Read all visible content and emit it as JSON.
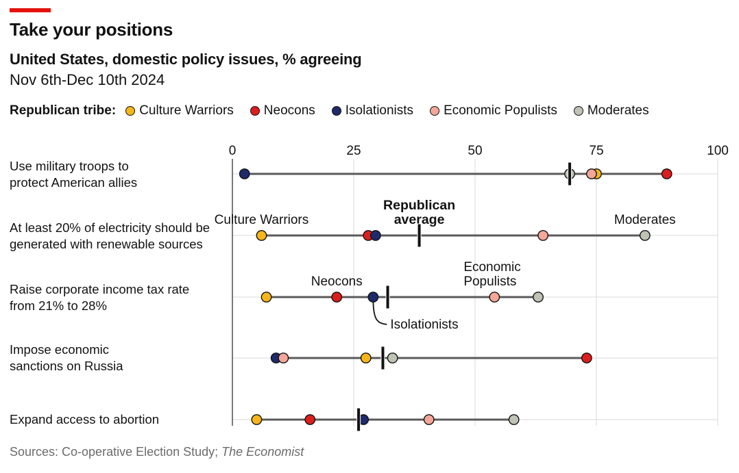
{
  "header": {
    "title": "Take your positions",
    "subtitle": "United States, domestic policy issues, % agreeing",
    "dates": "Nov 6th-Dec 10th 2024"
  },
  "legend": {
    "title": "Republican tribe:",
    "items": [
      {
        "name": "Culture Warriors",
        "color": "#f6b619"
      },
      {
        "name": "Neocons",
        "color": "#db1e1e"
      },
      {
        "name": "Isolationists",
        "color": "#1f2a6b"
      },
      {
        "name": "Economic Populists",
        "color": "#f4a698"
      },
      {
        "name": "Moderates",
        "color": "#bfc3b4"
      }
    ]
  },
  "footer": {
    "source_prefix": "Sources: Co-operative Election Study; ",
    "source_italic": "The Economist"
  },
  "chart_data": {
    "type": "dot-plot",
    "xlim": [
      0,
      100
    ],
    "xticks": [
      "0",
      "25",
      "50",
      "75",
      "100"
    ],
    "grid": true,
    "series_order": [
      "Culture Warriors",
      "Neocons",
      "Isolationists",
      "Economic Populists",
      "Moderates"
    ],
    "average_label": "Republican average",
    "rows": [
      {
        "label": [
          "Use military troops to",
          "protect American allies"
        ],
        "values": {
          "Culture Warriors": 75,
          "Neocons": 89.5,
          "Isolationists": 2.5,
          "Economic Populists": 74,
          "Moderates": 69.5
        },
        "average": 69.5
      },
      {
        "label": [
          "At least 20% of electricity should be",
          "generated with renewable sources"
        ],
        "values": {
          "Culture Warriors": 6,
          "Neocons": 28,
          "Isolationists": 29.5,
          "Economic Populists": 64,
          "Moderates": 85
        },
        "average": 38.5
      },
      {
        "label": [
          "Raise corporate income tax rate",
          "from 21% to 28%"
        ],
        "values": {
          "Culture Warriors": 7,
          "Neocons": 21.5,
          "Isolationists": 29,
          "Economic Populists": 54,
          "Moderates": 63
        },
        "average": 32
      },
      {
        "label": [
          "Impose economic",
          "sanctions on Russia"
        ],
        "values": {
          "Culture Warriors": 27.5,
          "Neocons": 73,
          "Isolationists": 9,
          "Economic Populists": 10.5,
          "Moderates": 33
        },
        "average": 31
      },
      {
        "label": [
          "Expand access to abortion"
        ],
        "values": {
          "Culture Warriors": 5,
          "Neocons": 16,
          "Isolationists": 27,
          "Economic Populists": 40.5,
          "Moderates": 58
        },
        "average": 26
      }
    ],
    "annotations": [
      {
        "row": 1,
        "series": "Culture Warriors",
        "text": [
          "Culture Warriors"
        ]
      },
      {
        "row": 1,
        "series": "Moderates",
        "text": [
          "Moderates"
        ]
      },
      {
        "row": 1,
        "series": "average",
        "text": [
          "Republican",
          "average"
        ],
        "bold": true
      },
      {
        "row": 2,
        "series": "Neocons",
        "text": [
          "Neocons"
        ]
      },
      {
        "row": 2,
        "series": "Economic Populists",
        "text": [
          "Economic",
          "Populists"
        ]
      },
      {
        "row": 2,
        "series": "Isolationists",
        "text": [
          "Isolationists"
        ],
        "leader": true
      }
    ]
  }
}
